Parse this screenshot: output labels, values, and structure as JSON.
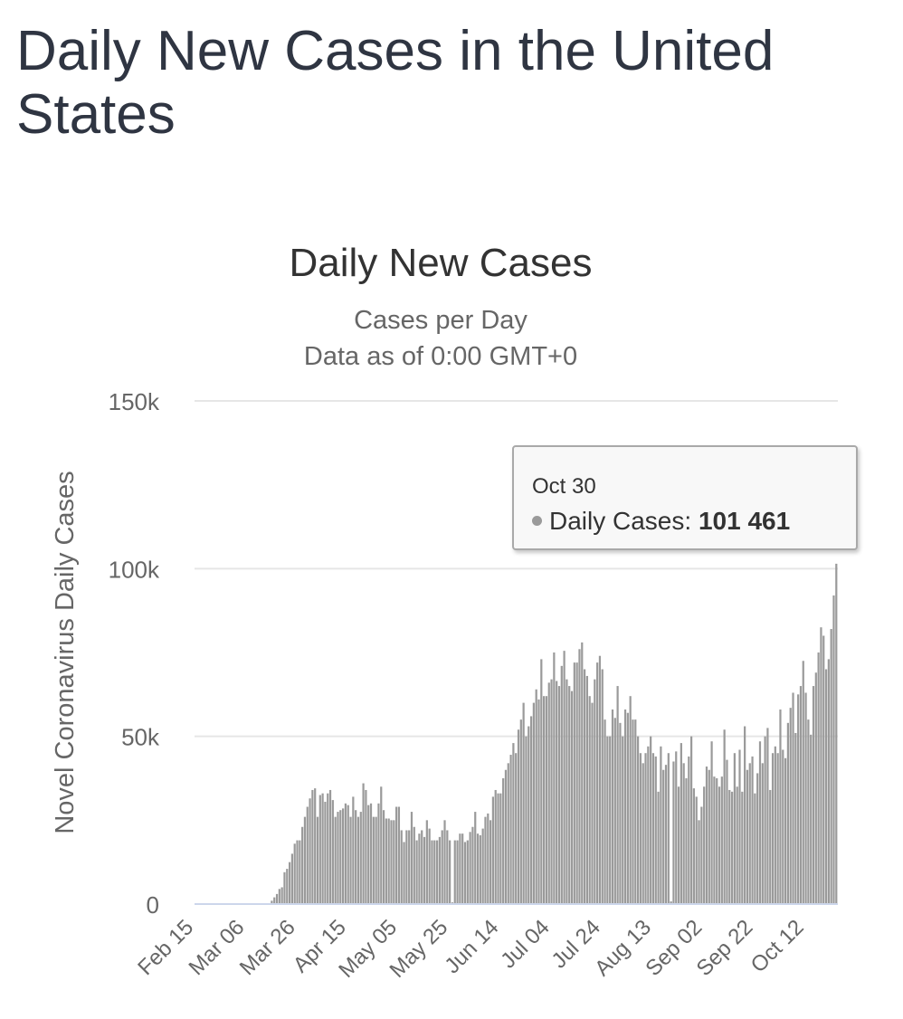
{
  "page": {
    "title": "Daily New Cases in the United States"
  },
  "colors": {
    "bar": "#9a9a9a",
    "grid": "#e6e6e6",
    "axis": "#ccd6eb",
    "text": "#666666",
    "title": "#333333"
  },
  "chart_data": {
    "type": "bar",
    "title": "Daily New Cases",
    "subtitle": "Cases per Day",
    "subtitle2": "Data as of 0:00 GMT+0",
    "ylabel": "Novel Coronavirus Daily Cases",
    "xlabel": "",
    "ylim": [
      0,
      150000
    ],
    "yticks": [
      {
        "value": 0,
        "label": "0"
      },
      {
        "value": 50000,
        "label": "50k"
      },
      {
        "value": 100000,
        "label": "100k"
      },
      {
        "value": 150000,
        "label": "150k"
      }
    ],
    "xticks": [
      {
        "index": 0,
        "label": "Feb 15"
      },
      {
        "index": 20,
        "label": "Mar 06"
      },
      {
        "index": 40,
        "label": "Mar 26"
      },
      {
        "index": 60,
        "label": "Apr 15"
      },
      {
        "index": 80,
        "label": "May 05"
      },
      {
        "index": 100,
        "label": "May 25"
      },
      {
        "index": 120,
        "label": "Jun 14"
      },
      {
        "index": 140,
        "label": "Jul 04"
      },
      {
        "index": 160,
        "label": "Jul 24"
      },
      {
        "index": 180,
        "label": "Aug 13"
      },
      {
        "index": 200,
        "label": "Sep 02"
      },
      {
        "index": 220,
        "label": "Sep 22"
      },
      {
        "index": 240,
        "label": "Oct 12"
      }
    ],
    "start_date": "Feb 15",
    "end_date": "Oct 30",
    "series": [
      {
        "name": "Daily Cases",
        "values": [
          0,
          0,
          0,
          0,
          0,
          0,
          0,
          0,
          0,
          0,
          0,
          0,
          0,
          0,
          0,
          0,
          0,
          0,
          0,
          0,
          0,
          0,
          0,
          0,
          0,
          0,
          0,
          0,
          0,
          0,
          1000,
          2000,
          3000,
          4500,
          5000,
          9500,
          10500,
          12500,
          15000,
          18000,
          19000,
          19000,
          23000,
          26000,
          29000,
          31500,
          34000,
          34500,
          26000,
          32500,
          33000,
          30500,
          33000,
          34000,
          31000,
          26000,
          27500,
          28000,
          28500,
          30000,
          29500,
          26000,
          32000,
          28000,
          26000,
          27500,
          36000,
          34000,
          29500,
          30000,
          26000,
          26000,
          30000,
          35000,
          28000,
          25500,
          25500,
          25000,
          25000,
          29000,
          29000,
          22000,
          18500,
          22000,
          22000,
          27500,
          23000,
          19000,
          21000,
          22000,
          20000,
          25000,
          22500,
          19000,
          19000,
          19000,
          20000,
          22000,
          25000,
          22000,
          19000,
          500,
          19000,
          19000,
          21000,
          21000,
          18500,
          19000,
          21500,
          23000,
          27500,
          21000,
          20500,
          22500,
          26000,
          27000,
          25000,
          32000,
          34000,
          33000,
          33000,
          37500,
          40000,
          42000,
          44500,
          48000,
          45000,
          52000,
          55000,
          60000,
          50000,
          53000,
          56000,
          60000,
          64000,
          61000,
          73000,
          62000,
          62000,
          66000,
          67000,
          75000,
          66500,
          65000,
          71000,
          75500,
          67000,
          65000,
          63500,
          72000,
          72000,
          76000,
          78000,
          70000,
          68000,
          62000,
          60000,
          67000,
          72000,
          74000,
          70000,
          55000,
          50000,
          50000,
          58000,
          55500,
          65000,
          54000,
          50000,
          58000,
          57000,
          62000,
          55000,
          55000,
          50000,
          45000,
          42000,
          45000,
          47000,
          50000,
          45000,
          44000,
          33500,
          47000,
          40000,
          41500,
          45000,
          800,
          42500,
          45500,
          35000,
          48000,
          42000,
          37500,
          44000,
          50000,
          34500,
          32000,
          25000,
          29000,
          35000,
          41000,
          40000,
          48500,
          38000,
          37500,
          35000,
          38000,
          52000,
          43000,
          34000,
          33500,
          45000,
          35000,
          46000,
          33500,
          53000,
          40000,
          42000,
          44000,
          33000,
          39000,
          48500,
          42000,
          50000,
          52500,
          34000,
          45000,
          47000,
          45000,
          58000,
          46000,
          43500,
          54000,
          58500,
          63000,
          51000,
          62500,
          65000,
          72500,
          63000,
          55000,
          50500,
          65000,
          69000,
          75000,
          82500,
          80000,
          70000,
          73000,
          82000,
          92000,
          101461
        ]
      }
    ],
    "tooltip": {
      "date": "Oct 30",
      "series": "Daily Cases",
      "label": "Daily Cases:",
      "value": "101 461"
    }
  }
}
